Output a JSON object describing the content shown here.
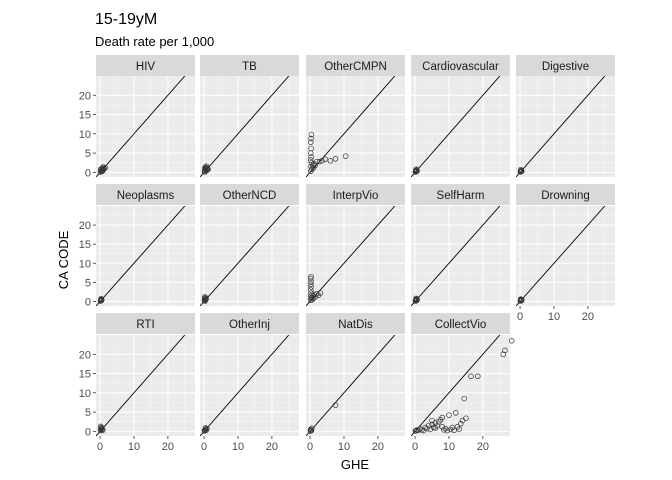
{
  "chart_data": {
    "type": "scatter",
    "title": "15-19yM",
    "subtitle": "Death rate per 1,000",
    "xlabel": "GHE",
    "ylabel": "CA CODE",
    "xlim": [
      -1.2,
      28
    ],
    "ylim": [
      -1.2,
      25
    ],
    "x_ticks": [
      0,
      10,
      20
    ],
    "y_ticks": [
      0,
      5,
      10,
      15,
      20
    ],
    "reference_line": "y = x",
    "grid": true,
    "facet_columns": 5,
    "panels": [
      {
        "name": "HIV",
        "points": [
          [
            0.1,
            0.1
          ],
          [
            0.3,
            0.4
          ],
          [
            0.5,
            0.6
          ],
          [
            0.8,
            0.9
          ],
          [
            1.0,
            0.7
          ],
          [
            0.6,
            1.1
          ],
          [
            1.2,
            1.0
          ],
          [
            0.9,
            1.4
          ],
          [
            0.2,
            0.8
          ],
          [
            0.4,
            0.2
          ],
          [
            1.5,
            1.2
          ],
          [
            0.7,
            0.3
          ]
        ]
      },
      {
        "name": "TB",
        "points": [
          [
            0.1,
            0.2
          ],
          [
            0.3,
            0.5
          ],
          [
            0.5,
            0.8
          ],
          [
            0.2,
            1.0
          ],
          [
            0.6,
            1.2
          ],
          [
            0.8,
            0.5
          ],
          [
            1.0,
            0.9
          ],
          [
            0.4,
            1.4
          ],
          [
            0.7,
            1.6
          ],
          [
            1.2,
            0.8
          ],
          [
            0.3,
            0.1
          ],
          [
            0.9,
            1.1
          ]
        ]
      },
      {
        "name": "OtherCMPN",
        "points": [
          [
            0.2,
            0.3
          ],
          [
            0.5,
            0.8
          ],
          [
            0.3,
            1.5
          ],
          [
            0.4,
            2.5
          ],
          [
            0.2,
            3.2
          ],
          [
            0.3,
            4.0
          ],
          [
            0.2,
            5.0
          ],
          [
            0.3,
            6.2
          ],
          [
            0.2,
            7.8
          ],
          [
            0.3,
            8.8
          ],
          [
            0.4,
            9.8
          ],
          [
            0.8,
            1.8
          ],
          [
            1.2,
            2.2
          ],
          [
            2.0,
            2.8
          ],
          [
            2.8,
            2.8
          ],
          [
            3.5,
            3.0
          ],
          [
            4.5,
            3.4
          ],
          [
            6.0,
            3.0
          ],
          [
            7.5,
            3.5
          ],
          [
            10.5,
            4.2
          ],
          [
            1.0,
            1.2
          ],
          [
            1.5,
            1.8
          ]
        ]
      },
      {
        "name": "Cardiovascular",
        "points": [
          [
            0.1,
            0.1
          ],
          [
            0.2,
            0.3
          ],
          [
            0.3,
            0.5
          ],
          [
            0.4,
            0.2
          ],
          [
            0.5,
            0.6
          ],
          [
            0.3,
            0.8
          ],
          [
            0.6,
            0.4
          ]
        ]
      },
      {
        "name": "Digestive",
        "points": [
          [
            0.1,
            0.1
          ],
          [
            0.2,
            0.4
          ],
          [
            0.3,
            0.2
          ],
          [
            0.4,
            0.5
          ],
          [
            0.2,
            0.7
          ],
          [
            0.5,
            0.3
          ]
        ]
      },
      {
        "name": "Neoplasms",
        "points": [
          [
            0.1,
            0.1
          ],
          [
            0.2,
            0.3
          ],
          [
            0.3,
            0.5
          ],
          [
            0.4,
            0.2
          ],
          [
            0.5,
            0.4
          ],
          [
            0.3,
            0.7
          ]
        ]
      },
      {
        "name": "OtherNCD",
        "points": [
          [
            0.1,
            0.2
          ],
          [
            0.3,
            0.4
          ],
          [
            0.2,
            0.8
          ],
          [
            0.4,
            1.0
          ],
          [
            0.5,
            0.5
          ],
          [
            0.2,
            1.2
          ],
          [
            0.6,
            0.7
          ],
          [
            0.3,
            0.1
          ]
        ]
      },
      {
        "name": "InterpVio",
        "points": [
          [
            0.2,
            0.3
          ],
          [
            0.3,
            0.8
          ],
          [
            0.2,
            1.5
          ],
          [
            0.3,
            2.2
          ],
          [
            0.2,
            3.0
          ],
          [
            0.3,
            3.8
          ],
          [
            0.2,
            4.5
          ],
          [
            0.3,
            5.2
          ],
          [
            0.2,
            6.0
          ],
          [
            0.3,
            6.5
          ],
          [
            0.5,
            1.0
          ],
          [
            0.8,
            1.4
          ],
          [
            1.2,
            1.8
          ],
          [
            1.6,
            1.2
          ],
          [
            2.0,
            2.0
          ],
          [
            2.5,
            1.6
          ],
          [
            3.0,
            2.2
          ],
          [
            0.6,
            0.4
          ],
          [
            1.0,
            0.8
          ]
        ]
      },
      {
        "name": "SelfHarm",
        "points": [
          [
            0.1,
            0.1
          ],
          [
            0.2,
            0.3
          ],
          [
            0.3,
            0.5
          ],
          [
            0.4,
            0.2
          ],
          [
            0.5,
            0.6
          ],
          [
            0.6,
            0.4
          ],
          [
            0.3,
            0.8
          ]
        ]
      },
      {
        "name": "Drowning",
        "points": [
          [
            0.1,
            0.1
          ],
          [
            0.2,
            0.3
          ],
          [
            0.3,
            0.5
          ],
          [
            0.4,
            0.2
          ],
          [
            0.5,
            0.4
          ],
          [
            0.2,
            0.6
          ]
        ]
      },
      {
        "name": "RTI",
        "points": [
          [
            0.1,
            0.2
          ],
          [
            0.2,
            0.5
          ],
          [
            0.3,
            0.8
          ],
          [
            0.5,
            0.4
          ],
          [
            0.4,
            1.0
          ],
          [
            0.6,
            0.6
          ],
          [
            0.8,
            0.3
          ],
          [
            0.2,
            1.3
          ]
        ]
      },
      {
        "name": "OtherInj",
        "points": [
          [
            0.1,
            0.2
          ],
          [
            0.3,
            0.4
          ],
          [
            0.5,
            0.6
          ],
          [
            0.4,
            0.9
          ],
          [
            0.6,
            0.3
          ],
          [
            0.8,
            0.7
          ],
          [
            0.2,
            0.1
          ]
        ]
      },
      {
        "name": "NatDis",
        "points": [
          [
            0.1,
            0.1
          ],
          [
            0.3,
            0.3
          ],
          [
            0.5,
            0.8
          ],
          [
            0.2,
            0.5
          ],
          [
            0.4,
            0.2
          ],
          [
            7.5,
            6.8
          ]
        ]
      },
      {
        "name": "CollectVio",
        "points": [
          [
            0.1,
            0.1
          ],
          [
            0.3,
            0.2
          ],
          [
            0.6,
            0.4
          ],
          [
            1.0,
            0.3
          ],
          [
            1.5,
            0.6
          ],
          [
            2.0,
            0.4
          ],
          [
            2.5,
            0.2
          ],
          [
            3.0,
            1.0
          ],
          [
            3.5,
            0.7
          ],
          [
            4.0,
            1.5
          ],
          [
            4.5,
            0.5
          ],
          [
            5.0,
            1.8
          ],
          [
            5.5,
            1.0
          ],
          [
            6.0,
            2.2
          ],
          [
            6.5,
            1.4
          ],
          [
            7.0,
            2.5
          ],
          [
            7.5,
            3.0
          ],
          [
            8.0,
            3.6
          ],
          [
            8.5,
            0.4
          ],
          [
            9.0,
            0.7
          ],
          [
            9.5,
            0.2
          ],
          [
            10.0,
            4.2
          ],
          [
            10.5,
            0.5
          ],
          [
            11.0,
            1.0
          ],
          [
            11.5,
            0.3
          ],
          [
            12.0,
            4.8
          ],
          [
            12.5,
            1.2
          ],
          [
            13.0,
            0.6
          ],
          [
            13.5,
            2.0
          ],
          [
            14.0,
            2.8
          ],
          [
            14.5,
            8.5
          ],
          [
            15.0,
            3.4
          ],
          [
            16.5,
            14.3
          ],
          [
            18.5,
            14.3
          ],
          [
            26.0,
            20.0
          ],
          [
            26.5,
            21.0
          ],
          [
            28.5,
            23.5
          ],
          [
            5.0,
            2.8
          ],
          [
            6.0,
            0.9
          ],
          [
            8.0,
            1.2
          ]
        ]
      }
    ]
  }
}
